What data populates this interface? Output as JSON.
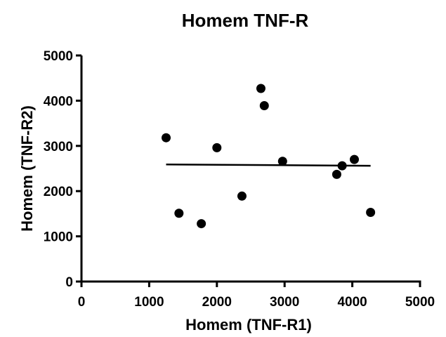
{
  "chart_data": {
    "type": "scatter",
    "title": "Homem TNF-R",
    "xlabel": "Homem (TNF-R1)",
    "ylabel": "Homem (TNF-R2)",
    "xlim": [
      0,
      5000
    ],
    "ylim": [
      0,
      5000
    ],
    "xticks": [
      0,
      1000,
      2000,
      3000,
      4000,
      5000
    ],
    "yticks": [
      0,
      1000,
      2000,
      3000,
      4000,
      5000
    ],
    "grid": false,
    "legend": "none",
    "marker_color": "#000000",
    "points": [
      {
        "x": 1250,
        "y": 3180
      },
      {
        "x": 1440,
        "y": 1510
      },
      {
        "x": 1770,
        "y": 1280
      },
      {
        "x": 2000,
        "y": 2960
      },
      {
        "x": 2370,
        "y": 1890
      },
      {
        "x": 2650,
        "y": 4270
      },
      {
        "x": 2700,
        "y": 3890
      },
      {
        "x": 2970,
        "y": 2660
      },
      {
        "x": 3770,
        "y": 2370
      },
      {
        "x": 3850,
        "y": 2560
      },
      {
        "x": 4030,
        "y": 2700
      },
      {
        "x": 4270,
        "y": 1530
      }
    ],
    "fit_line": {
      "x": [
        1250,
        4270
      ],
      "y": [
        2590,
        2560
      ]
    }
  }
}
